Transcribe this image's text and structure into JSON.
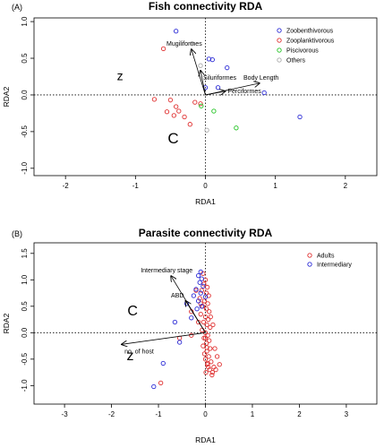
{
  "chart_data": [
    {
      "type": "scatter",
      "panel_label": "(A)",
      "title": "Fish connectivity RDA",
      "xlabel": "RDA1",
      "ylabel": "RDA2",
      "xlim": [
        -2.45,
        2.45
      ],
      "ylim": [
        -1.1,
        1.05
      ],
      "xticks": [
        -2,
        -1,
        0,
        1,
        2
      ],
      "xtick_labels": [
        "-2",
        "-1",
        "0",
        "1",
        "2"
      ],
      "yticks": [
        -1.0,
        -0.5,
        0.0,
        0.5,
        1.0
      ],
      "ytick_labels": [
        "-1.0",
        "-0.5",
        "0.0",
        "0.5",
        "1.0"
      ],
      "grid": false,
      "legend_position": "top-right",
      "series": [
        {
          "name": "Zoobenthivorous",
          "color": "#2b2bd6",
          "points": [
            [
              -0.42,
              0.87
            ],
            [
              0.05,
              0.49
            ],
            [
              0.1,
              0.48
            ],
            [
              0.31,
              0.37
            ],
            [
              0.84,
              0.03
            ],
            [
              1.35,
              -0.3
            ],
            [
              0.0,
              0.1
            ],
            [
              0.18,
              0.1
            ]
          ]
        },
        {
          "name": "Zooplanktivorous",
          "color": "#e03030",
          "points": [
            [
              -0.6,
              0.63
            ],
            [
              -0.73,
              -0.06
            ],
            [
              -0.5,
              -0.07
            ],
            [
              -0.55,
              -0.23
            ],
            [
              -0.45,
              -0.28
            ],
            [
              -0.38,
              -0.22
            ],
            [
              -0.3,
              -0.3
            ],
            [
              -0.22,
              -0.4
            ],
            [
              -0.15,
              -0.1
            ],
            [
              -0.07,
              -0.12
            ],
            [
              -0.42,
              -0.16
            ]
          ]
        },
        {
          "name": "Piscivorous",
          "color": "#22c422",
          "points": [
            [
              0.12,
              -0.22
            ],
            [
              0.44,
              -0.45
            ],
            [
              -0.06,
              -0.15
            ]
          ]
        },
        {
          "name": "Others",
          "color": "#aaaaaa",
          "points": [
            [
              -0.19,
              0.7
            ],
            [
              -0.07,
              0.4
            ],
            [
              0.02,
              -0.48
            ]
          ]
        }
      ],
      "arrows": [
        {
          "label": "Mugiliformes",
          "x": -0.2,
          "y": 0.62
        },
        {
          "label": "Siluriformes",
          "x": -0.07,
          "y": 0.33
        },
        {
          "label": "Body Length",
          "x": 0.77,
          "y": 0.16
        },
        {
          "label": "Perciformes",
          "x": 0.28,
          "y": 0.05
        }
      ],
      "annotations": [
        {
          "text": "z",
          "x": -1.22,
          "y": 0.2
        },
        {
          "text": "C",
          "x": -0.46,
          "y": -0.66
        }
      ]
    },
    {
      "type": "scatter",
      "panel_label": "(B)",
      "title": "Parasite connectivity RDA",
      "xlabel": "RDA1",
      "ylabel": "RDA2",
      "xlim": [
        -3.65,
        3.65
      ],
      "ylim": [
        -1.35,
        1.7
      ],
      "xticks": [
        -3,
        -2,
        -1,
        0,
        1,
        2,
        3
      ],
      "xtick_labels": [
        "-3",
        "-2",
        "-1",
        "0",
        "1",
        "2",
        "3"
      ],
      "yticks": [
        -1.0,
        -0.5,
        0.0,
        0.5,
        1.0,
        1.5
      ],
      "ytick_labels": [
        "-1.0",
        "-0.5",
        "0.0",
        "0.5",
        "1.0",
        "1.5"
      ],
      "grid": false,
      "legend_position": "top-right",
      "series": [
        {
          "name": "Adults",
          "color": "#e03030",
          "points": [
            [
              -0.05,
              1.12
            ],
            [
              0.0,
              1.0
            ],
            [
              -0.03,
              0.92
            ],
            [
              0.04,
              0.86
            ],
            [
              -0.08,
              0.8
            ],
            [
              0.02,
              0.75
            ],
            [
              0.07,
              0.7
            ],
            [
              -0.12,
              0.65
            ],
            [
              -0.02,
              0.6
            ],
            [
              0.05,
              0.55
            ],
            [
              -0.06,
              0.5
            ],
            [
              0.02,
              0.45
            ],
            [
              0.08,
              0.4
            ],
            [
              -0.1,
              0.35
            ],
            [
              0.0,
              0.3
            ],
            [
              0.06,
              0.25
            ],
            [
              -0.04,
              0.2
            ],
            [
              0.03,
              0.15
            ],
            [
              0.1,
              0.1
            ],
            [
              -0.07,
              0.05
            ],
            [
              0.0,
              0.0
            ],
            [
              0.05,
              -0.05
            ],
            [
              -0.03,
              -0.1
            ],
            [
              0.08,
              -0.15
            ],
            [
              0.02,
              -0.2
            ],
            [
              -0.05,
              -0.25
            ],
            [
              0.1,
              -0.3
            ],
            [
              0.03,
              -0.35
            ],
            [
              -0.02,
              -0.4
            ],
            [
              0.07,
              -0.45
            ],
            [
              0.0,
              -0.5
            ],
            [
              0.12,
              -0.55
            ],
            [
              0.04,
              -0.6
            ],
            [
              0.18,
              -0.65
            ],
            [
              0.09,
              -0.7
            ],
            [
              0.01,
              -0.75
            ],
            [
              0.14,
              -0.8
            ],
            [
              0.25,
              -0.45
            ],
            [
              0.2,
              -0.3
            ],
            [
              0.06,
              -0.65
            ],
            [
              0.3,
              -0.6
            ],
            [
              -0.2,
              0.8
            ],
            [
              -0.1,
              0.55
            ],
            [
              0.15,
              -0.75
            ],
            [
              0.22,
              -0.7
            ],
            [
              0.05,
              -0.58
            ],
            [
              0.11,
              0.3
            ],
            [
              0.16,
              0.15
            ],
            [
              -0.15,
              0.2
            ],
            [
              -0.3,
              0.4
            ],
            [
              -0.55,
              -0.1
            ],
            [
              -0.95,
              -0.95
            ],
            [
              -0.3,
              -0.05
            ],
            [
              0.03,
              -0.28
            ],
            [
              0.0,
              -0.1
            ]
          ]
        },
        {
          "name": "Intermediary",
          "color": "#2b2bd6",
          "points": [
            [
              -0.1,
              1.15
            ],
            [
              -0.15,
              1.08
            ],
            [
              -0.08,
              1.02
            ],
            [
              -0.12,
              0.95
            ],
            [
              -0.05,
              0.88
            ],
            [
              -0.2,
              0.82
            ],
            [
              -0.1,
              0.75
            ],
            [
              0.0,
              0.68
            ],
            [
              -0.25,
              0.7
            ],
            [
              -0.4,
              0.55
            ],
            [
              -0.15,
              0.6
            ],
            [
              -0.08,
              0.5
            ],
            [
              -0.65,
              0.2
            ],
            [
              -0.55,
              -0.18
            ],
            [
              -0.9,
              -0.58
            ],
            [
              -1.1,
              -1.02
            ],
            [
              -0.18,
              0.45
            ],
            [
              -0.3,
              0.28
            ]
          ]
        }
      ],
      "arrows": [
        {
          "label": "Intermediary stage",
          "x": -0.73,
          "y": 1.07
        },
        {
          "label": "ABD",
          "x": -0.42,
          "y": 0.6
        },
        {
          "label": "no. of host",
          "x": -1.78,
          "y": -0.22
        }
      ],
      "annotations": [
        {
          "text": "C",
          "x": -1.55,
          "y": 0.33
        },
        {
          "text": "z",
          "x": -1.6,
          "y": -0.52
        }
      ]
    }
  ]
}
